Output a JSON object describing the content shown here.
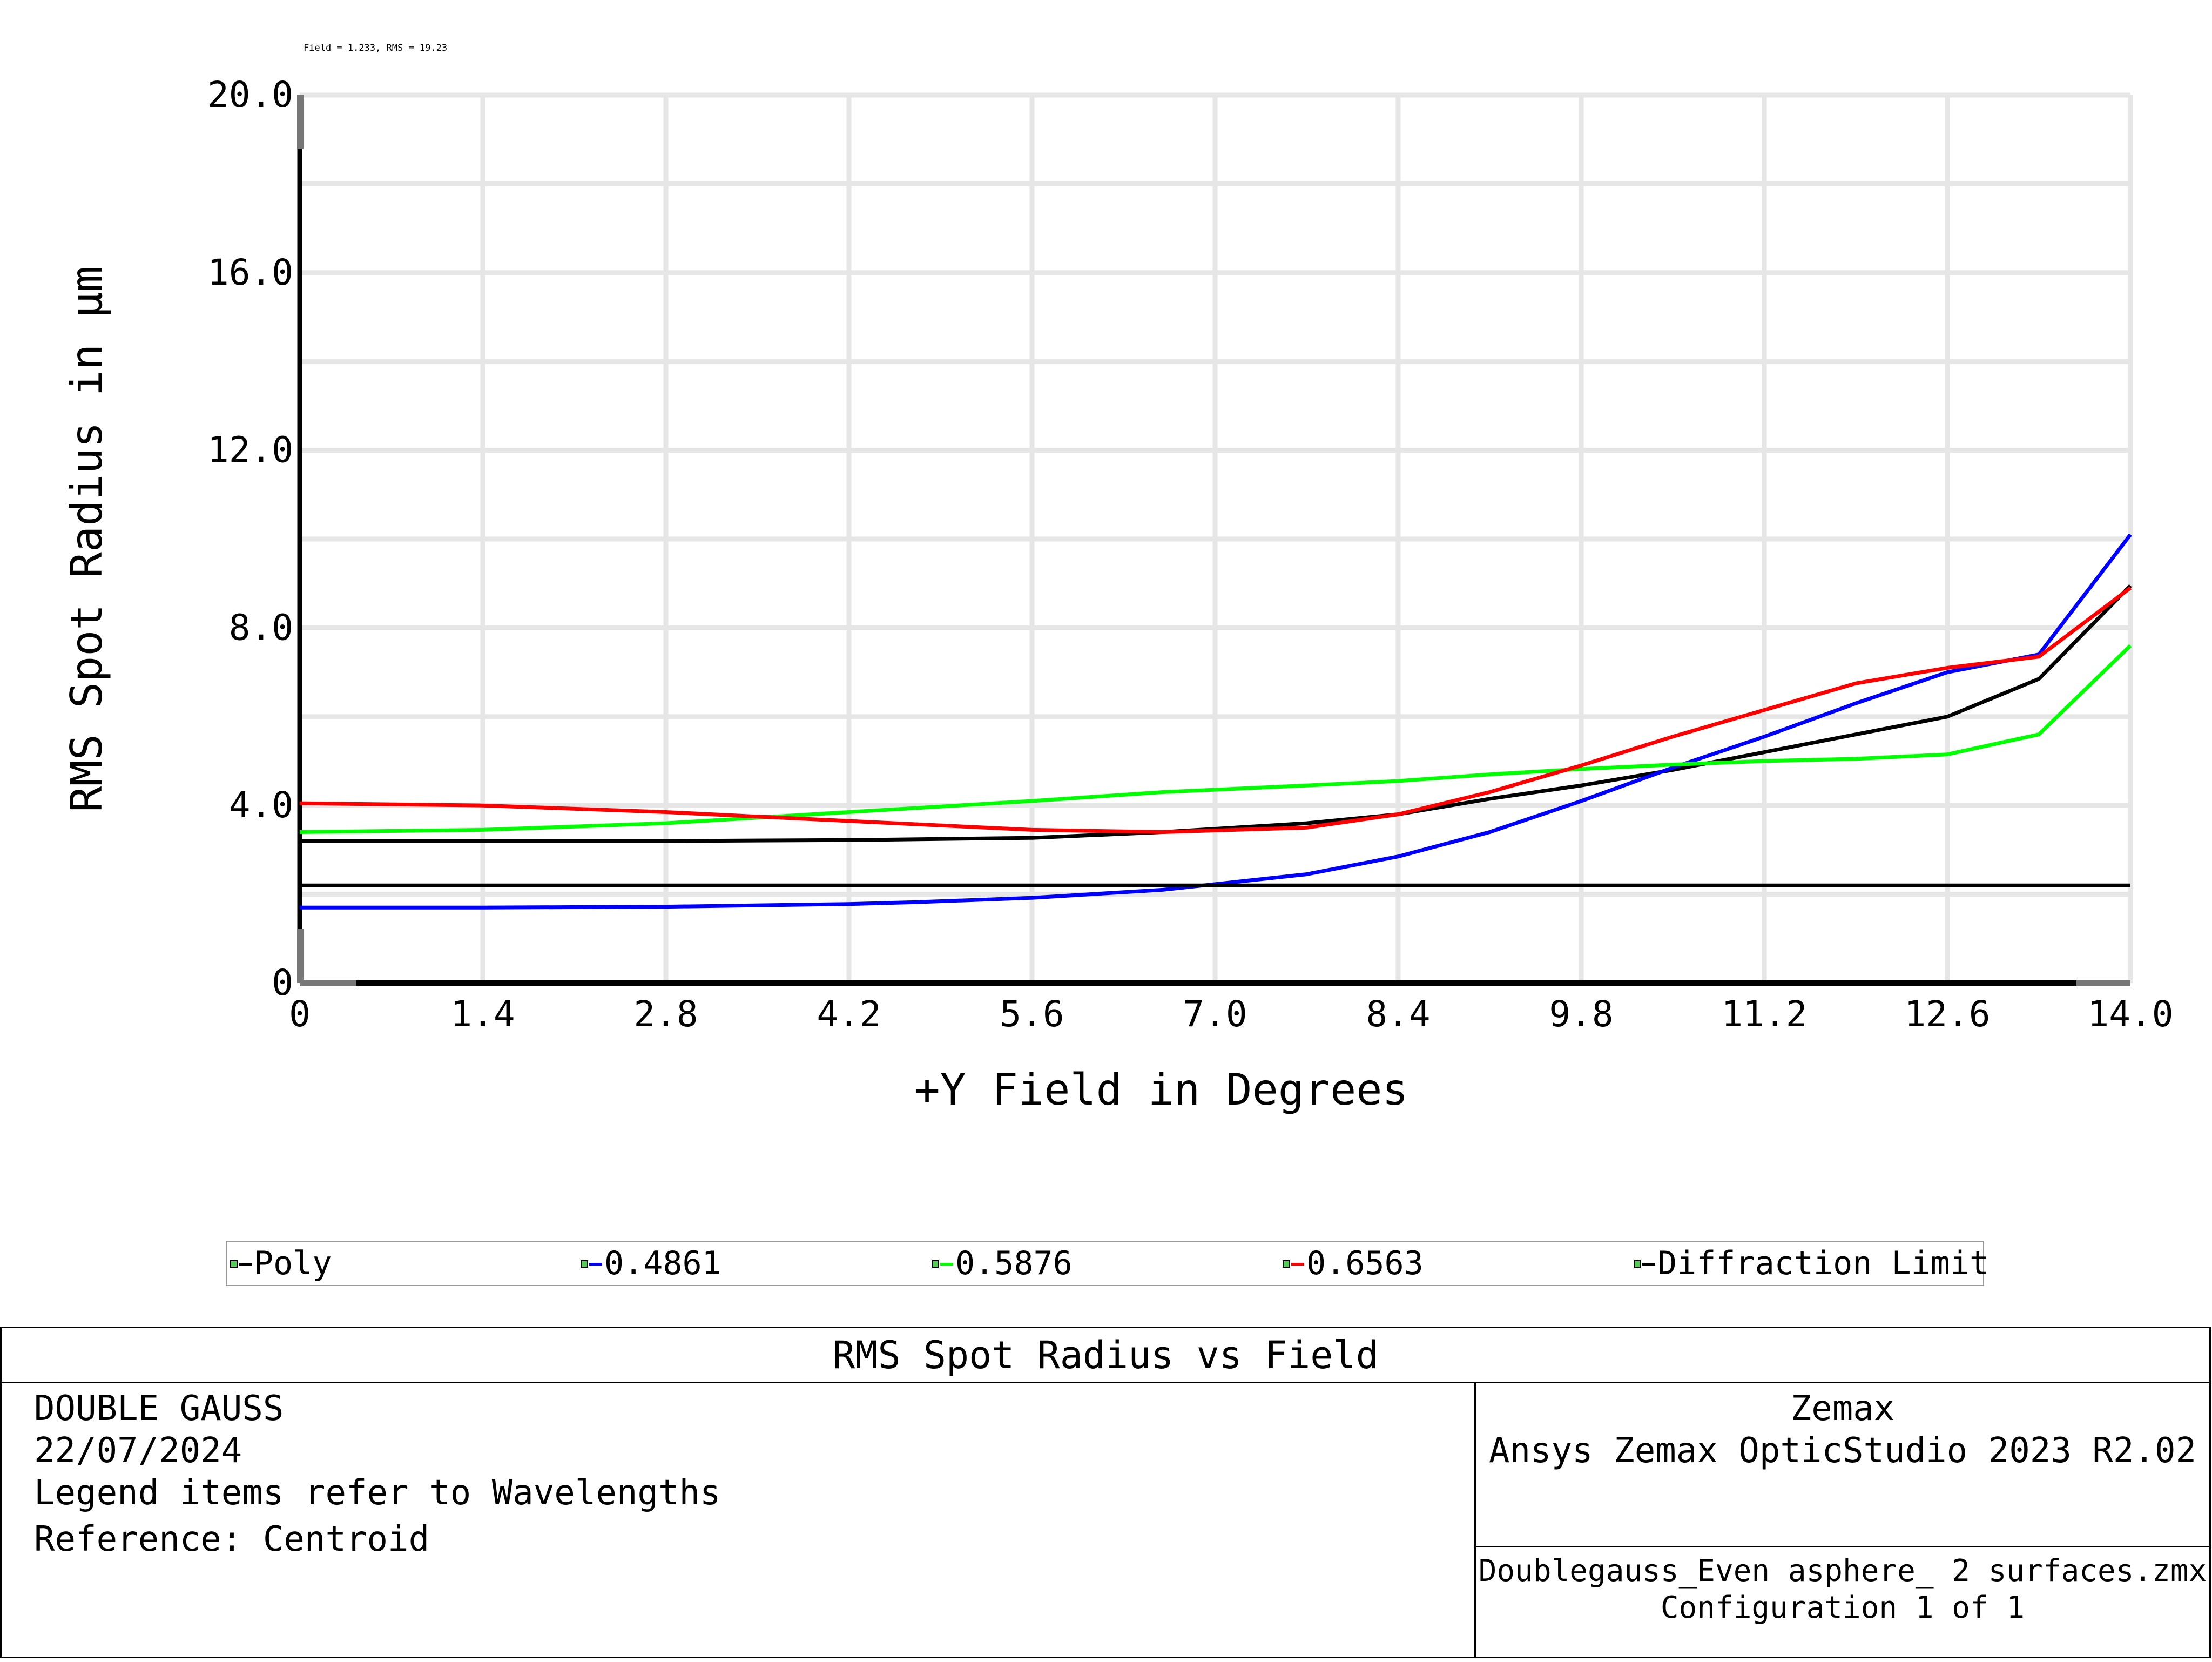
{
  "chart_data": {
    "type": "line",
    "annotation": "Field = 1.233, RMS = 19.23",
    "xlabel": "+Y Field in Degrees",
    "ylabel": "RMS Spot Radius in µm",
    "xlim": [
      0,
      14.0
    ],
    "ylim": [
      0,
      20.0
    ],
    "x_ticks": [
      "0",
      "1.4",
      "2.8",
      "4.2",
      "5.6",
      "7.0",
      "8.4",
      "9.8",
      "11.2",
      "12.6",
      "14.0"
    ],
    "y_ticks": [
      "0",
      "4.0",
      "8.0",
      "12.0",
      "16.0",
      "20.0"
    ],
    "grid": true,
    "series": [
      {
        "name": "Poly",
        "color": "#000000",
        "x": [
          0,
          1.4,
          2.8,
          4.2,
          5.6,
          6.6,
          7.7,
          8.4,
          9.1,
          9.8,
          10.5,
          11.2,
          11.9,
          12.6,
          13.3,
          14.0
        ],
        "y": [
          3.2,
          3.2,
          3.2,
          3.22,
          3.27,
          3.4,
          3.6,
          3.8,
          4.15,
          4.45,
          4.8,
          5.2,
          5.6,
          6.0,
          6.85,
          8.95
        ]
      },
      {
        "name": "0.4861",
        "color": "#0000ff",
        "x": [
          0,
          1.4,
          2.8,
          4.2,
          4.7,
          5.6,
          6.6,
          7.7,
          8.4,
          9.1,
          9.8,
          10.5,
          11.2,
          11.9,
          12.6,
          13.3,
          14.0
        ],
        "y": [
          1.7,
          1.7,
          1.72,
          1.78,
          1.82,
          1.92,
          2.1,
          2.45,
          2.85,
          3.4,
          4.1,
          4.85,
          5.55,
          6.3,
          7.0,
          7.4,
          10.1
        ]
      },
      {
        "name": "0.5876",
        "color": "#00ff00",
        "x": [
          0,
          1.4,
          2.8,
          4.2,
          5.6,
          6.6,
          7.7,
          8.4,
          9.1,
          9.8,
          10.5,
          11.2,
          11.9,
          12.6,
          13.3,
          14.0
        ],
        "y": [
          3.4,
          3.45,
          3.6,
          3.85,
          4.1,
          4.3,
          4.45,
          4.55,
          4.7,
          4.82,
          4.92,
          5.0,
          5.05,
          5.15,
          5.6,
          7.6
        ]
      },
      {
        "name": "0.6563",
        "color": "#ff0000",
        "x": [
          0,
          1.4,
          2.8,
          3.5,
          4.2,
          5.6,
          6.6,
          7.7,
          8.4,
          9.1,
          9.8,
          10.5,
          11.2,
          11.9,
          12.6,
          13.3,
          14.0
        ],
        "y": [
          4.05,
          4.0,
          3.85,
          3.75,
          3.65,
          3.45,
          3.4,
          3.5,
          3.8,
          4.3,
          4.9,
          5.55,
          6.15,
          6.75,
          7.1,
          7.35,
          8.9
        ]
      },
      {
        "name": "Diffraction Limit",
        "color": "#000000",
        "x": [
          0,
          14.0
        ],
        "y": [
          2.2,
          2.2
        ]
      }
    ]
  },
  "title_block": {
    "title": "RMS Spot Radius vs Field",
    "left_lines": [
      "DOUBLE GAUSS",
      "22/07/2024",
      "Legend items refer to Wavelengths",
      "Reference: Centroid"
    ],
    "company": "Zemax",
    "software": "Ansys Zemax OpticStudio 2023 R2.02",
    "file": "Doublegauss_Even asphere_ 2 surfaces.zmx",
    "configuration": "Configuration 1 of 1"
  }
}
